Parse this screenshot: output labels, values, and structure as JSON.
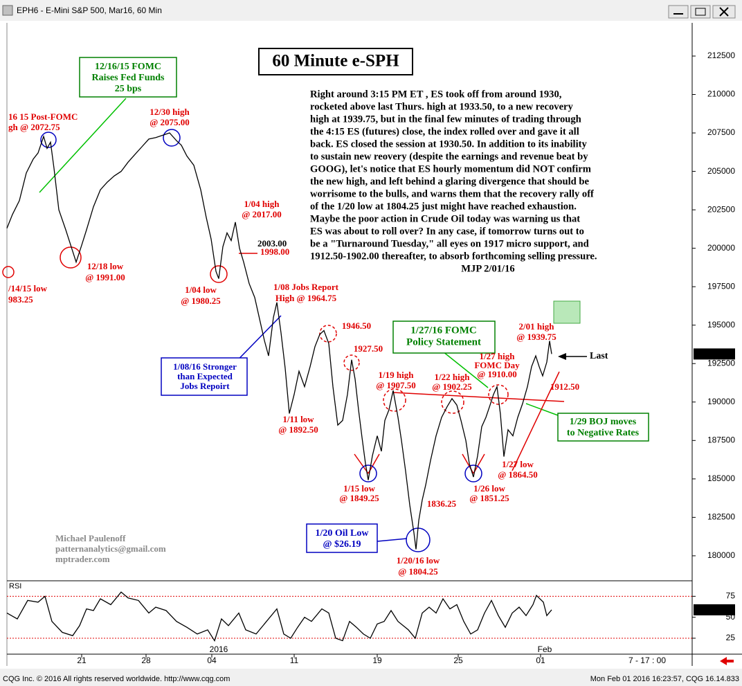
{
  "window": {
    "title": "EPH6 - E-Mini S&P 500, Mar16, 60 Min",
    "status_left": "CQG Inc. © 2016 All rights reserved worldwide. http://www.cqg.com",
    "status_right": "Mon Feb 01 2016 16:23:57, CQG 16.14.833"
  },
  "chart_data": [
    {
      "type": "line",
      "title": "60 Minute e-SPH",
      "color": "#000000",
      "x": [
        0,
        8,
        18,
        28,
        38,
        45,
        53,
        58,
        63,
        68,
        75,
        85,
        95,
        100,
        108,
        115,
        125,
        135,
        145,
        155,
        165,
        175,
        185,
        195,
        205,
        215,
        225,
        235,
        245,
        252,
        260,
        270,
        280,
        288,
        295,
        302,
        306,
        312,
        318,
        324,
        330,
        336,
        342,
        350,
        358,
        365,
        372,
        378,
        385,
        390,
        396,
        402,
        408,
        415,
        422,
        430,
        438,
        445,
        452,
        458,
        465,
        471,
        478,
        485,
        492,
        498,
        503,
        508,
        513,
        518,
        522,
        528,
        535,
        541,
        546,
        552,
        558,
        565,
        570,
        576,
        582,
        588,
        591,
        595,
        600,
        605,
        612,
        620,
        628,
        636,
        643,
        650,
        656,
        663,
        668,
        674,
        680,
        686,
        692,
        698,
        703,
        708,
        713,
        718,
        724,
        731,
        738,
        745,
        752,
        758,
        764,
        769,
        774,
        780,
        784,
        787
      ],
      "values": [
        201300,
        202200,
        203100,
        204900,
        205800,
        206200,
        207275,
        206500,
        206900,
        205200,
        202500,
        201200,
        199800,
        199100,
        200200,
        201200,
        202700,
        203800,
        204300,
        204700,
        205000,
        205600,
        206100,
        206600,
        207100,
        207200,
        207350,
        207500,
        207000,
        206700,
        206000,
        205400,
        203800,
        202000,
        200600,
        198500,
        198025,
        200100,
        201000,
        200500,
        201700,
        200000,
        199100,
        197700,
        196800,
        195400,
        194000,
        193000,
        195500,
        196475,
        194500,
        192200,
        189250,
        190500,
        192000,
        191000,
        192300,
        193600,
        194400,
        194650,
        193800,
        191000,
        188500,
        188800,
        190500,
        192750,
        191500,
        189500,
        187700,
        186000,
        184925,
        186500,
        187800,
        186800,
        188800,
        189500,
        190750,
        189000,
        187500,
        185500,
        183300,
        181500,
        180425,
        182300,
        183625,
        184600,
        186200,
        187800,
        189000,
        189700,
        190225,
        189800,
        188800,
        187500,
        186000,
        185125,
        186500,
        188400,
        189000,
        189800,
        190500,
        191000,
        189200,
        186450,
        188200,
        187800,
        189000,
        189900,
        191000,
        192300,
        193000,
        192300,
        191700,
        192600,
        193975,
        193125
      ],
      "xlim": [
        0,
        990
      ],
      "ylim": [
        178420,
        214570
      ],
      "yticks": [
        180000,
        182500,
        185000,
        187500,
        190000,
        192500,
        195000,
        197500,
        200000,
        202500,
        205000,
        207500,
        210000,
        212500
      ],
      "annotations": [
        {
          "lines": [
            "12/16/15 FOMC",
            "Raises Fed Funds",
            "25 bps"
          ],
          "color": "#008000"
        },
        {
          "lines": [
            "16 15 Post-FOMC",
            "gh @ 2072.75"
          ],
          "color": "#e00000"
        },
        {
          "lines": [
            "12/30 high",
            "@ 2075.00"
          ],
          "color": "#e00000"
        },
        {
          "lines": [
            "12/18 low",
            "@ 1991.00"
          ],
          "color": "#e00000"
        },
        {
          "lines": [
            "/14/15 low",
            "983.25"
          ],
          "color": "#e00000"
        },
        {
          "lines": [
            "1/04 high",
            "@ 2017.00"
          ],
          "color": "#e00000"
        },
        {
          "lines": [
            "2003.00"
          ],
          "color": "#000000"
        },
        {
          "lines": [
            "1998.00"
          ],
          "color": "#e00000"
        },
        {
          "lines": [
            "1/04 low",
            "@ 1980.25"
          ],
          "color": "#e00000"
        },
        {
          "lines": [
            "1/08 Jobs Report",
            "High @ 1964.75"
          ],
          "color": "#e00000"
        },
        {
          "lines": [
            "1/08/16 Stronger",
            "than Expected",
            "Jobs Repoirt"
          ],
          "color": "#0000c0"
        },
        {
          "lines": [
            "1946.50"
          ],
          "color": "#e00000"
        },
        {
          "lines": [
            "1927.50"
          ],
          "color": "#e00000"
        },
        {
          "lines": [
            "1/19 high",
            "@ 1907.50"
          ],
          "color": "#e00000"
        },
        {
          "lines": [
            "1/27/16 FOMC",
            "Policy Statement"
          ],
          "color": "#008000"
        },
        {
          "lines": [
            "1/22 high",
            "@ 1902.25"
          ],
          "color": "#e00000"
        },
        {
          "lines": [
            "1/27 high",
            "FOMC Day",
            "@ 1910.00"
          ],
          "color": "#e00000"
        },
        {
          "lines": [
            "2/01 high",
            "@ 1939.75"
          ],
          "color": "#e00000"
        },
        {
          "lines": [
            "Last"
          ],
          "color": "#000000"
        },
        {
          "lines": [
            "1912.50"
          ],
          "color": "#e00000"
        },
        {
          "lines": [
            "1/29 BOJ moves",
            "to Negative Rates"
          ],
          "color": "#008000"
        },
        {
          "lines": [
            "1/27 low",
            "@ 1864.50"
          ],
          "color": "#e00000"
        },
        {
          "lines": [
            "1/11 low",
            "@ 1892.50"
          ],
          "color": "#e00000"
        },
        {
          "lines": [
            "1/15 low",
            "@ 1849.25"
          ],
          "color": "#e00000"
        },
        {
          "lines": [
            "1836.25"
          ],
          "color": "#e00000"
        },
        {
          "lines": [
            "1/26 low",
            "@ 1851.25"
          ],
          "color": "#e00000"
        },
        {
          "lines": [
            "1/20 Oil Low",
            "@ $26.19"
          ],
          "color": "#0000c0"
        },
        {
          "lines": [
            "1/20/16 low",
            "@ 1804.25"
          ],
          "color": "#e00000"
        }
      ],
      "commentary": [
        "Right around 3:15 PM ET , ES took off from around 1930,",
        "rocketed above last Thurs. high at 1933.50, to a new recovery",
        "high at 1939.75, but in the final few minutes of trading through",
        "the 4:15 ES (futures) close, the index rolled over and gave it all",
        "back. ES closed the session at 1930.50. In addition to its inability",
        "to sustain new reovery (despite the earnings and revenue beat by",
        "GOOG), let's notice that ES hourly momentum did NOT confirm",
        "the new high, and left behind a glaring divergence that should be",
        "worrisome to the bulls, and warns them that the recovery rally off",
        "of the 1/20 low at 1804.25 just might have reached exhaustion.",
        "Maybe the poor action in Crude Oil today was warning us that",
        "ES was about to roll over? In any case, if tomorrow turns out to",
        "be a \"Turnaround Tuesday,\" all eyes on 1917 micro support, and",
        "1912.50-1902.00 thereafter, to absorb forthcoming selling pressure.",
        "MJP 2/01/16"
      ],
      "credit": [
        "Michael Paulenoff",
        "patternanalytics@gmail.com",
        "mptrader.com"
      ]
    },
    {
      "type": "line",
      "title": "RSI",
      "color": "#000000",
      "x": [
        0,
        15,
        30,
        45,
        55,
        65,
        80,
        95,
        105,
        115,
        125,
        135,
        150,
        165,
        175,
        190,
        205,
        215,
        230,
        245,
        260,
        275,
        290,
        300,
        310,
        320,
        335,
        345,
        360,
        375,
        390,
        400,
        410,
        420,
        430,
        440,
        455,
        465,
        475,
        485,
        495,
        505,
        515,
        525,
        535,
        545,
        555,
        565,
        580,
        590,
        600,
        610,
        620,
        630,
        640,
        650,
        660,
        670,
        680,
        690,
        700,
        710,
        720,
        730,
        740,
        750,
        760,
        765,
        775,
        780,
        787
      ],
      "values": [
        55,
        48,
        70,
        68,
        75,
        45,
        32,
        28,
        40,
        60,
        58,
        72,
        65,
        80,
        73,
        70,
        55,
        62,
        58,
        45,
        38,
        30,
        35,
        22,
        48,
        40,
        55,
        35,
        30,
        45,
        60,
        30,
        25,
        38,
        50,
        45,
        60,
        55,
        25,
        22,
        45,
        38,
        30,
        25,
        42,
        45,
        58,
        45,
        35,
        25,
        55,
        62,
        55,
        72,
        60,
        65,
        45,
        30,
        35,
        55,
        70,
        52,
        38,
        55,
        62,
        52,
        65,
        76,
        68,
        52,
        58.87
      ],
      "xlim": [
        0,
        990
      ],
      "ylim": [
        6,
        91
      ],
      "yticks": [
        25,
        50,
        75
      ],
      "hlines": [
        75,
        25
      ],
      "xticks": [
        {
          "value": 108,
          "label": "21"
        },
        {
          "value": 201,
          "label": "28"
        },
        {
          "value": 296,
          "label": "04"
        },
        {
          "value": 415,
          "label": "11"
        },
        {
          "value": 535,
          "label": "19"
        },
        {
          "value": 652,
          "label": "25"
        },
        {
          "value": 771,
          "label": "01"
        }
      ],
      "year_label": "2016",
      "month_label": "Feb",
      "session_label": "7 - 17 : 00"
    }
  ]
}
